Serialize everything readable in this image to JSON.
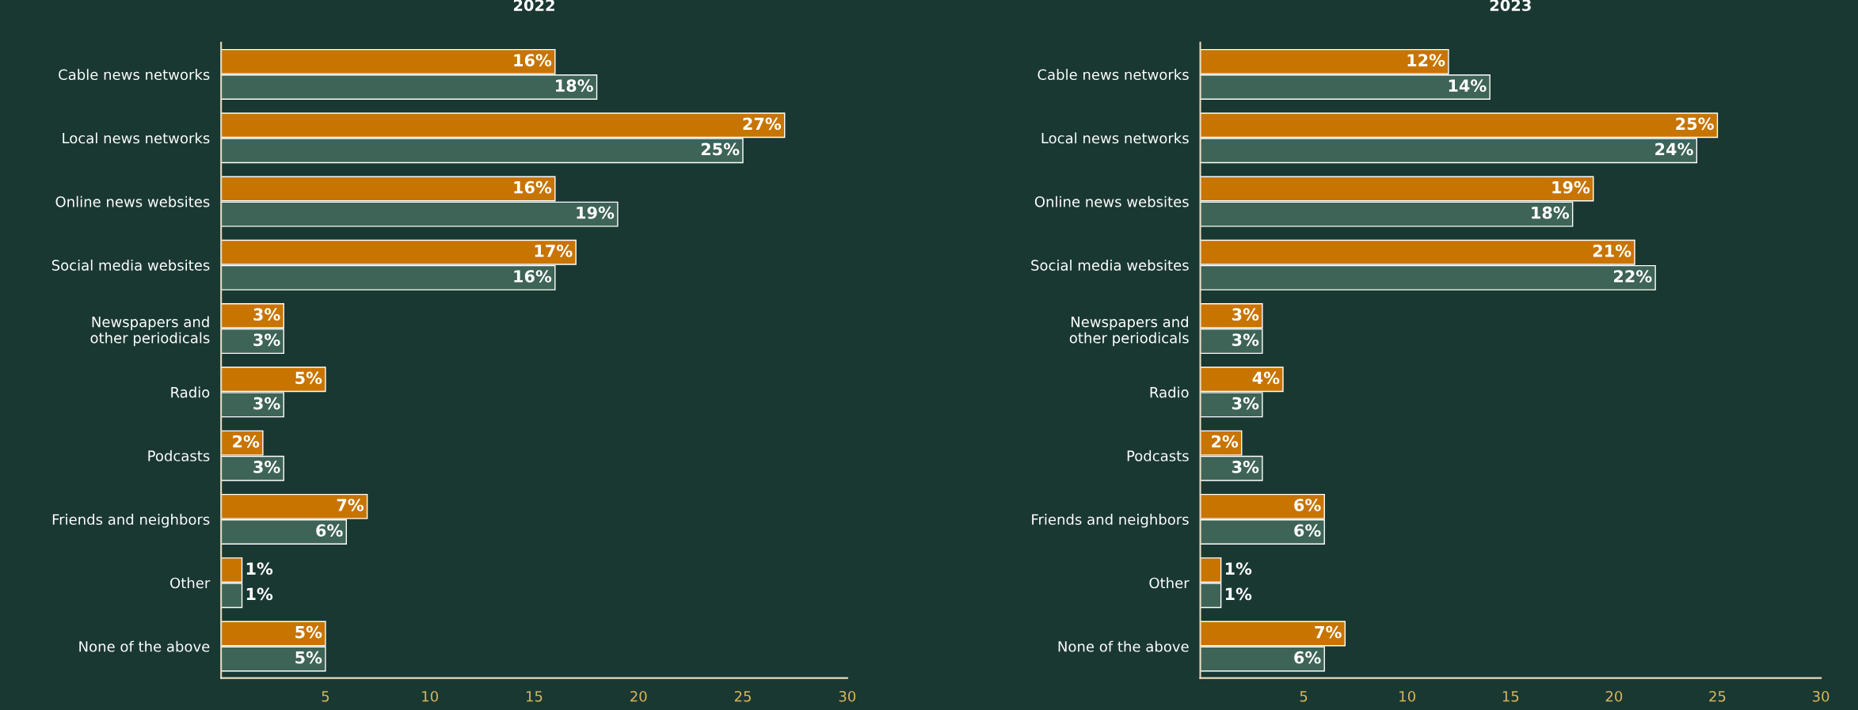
{
  "chart_data": [
    {
      "type": "bar",
      "orientation": "horizontal",
      "title": "2022",
      "categories": [
        "Cable news networks",
        "Local news networks",
        "Online news websites",
        "Social media websites",
        "Newspapers and\nother periodicals",
        "Radio",
        "Podcasts",
        "Friends and neighbors",
        "Other",
        "None of the above"
      ],
      "series": [
        {
          "color": "#c87400",
          "values": [
            16,
            27,
            16,
            17,
            3,
            5,
            2,
            7,
            1,
            5
          ],
          "value_labels": [
            "16%",
            "27%",
            "16%",
            "17%",
            "3%",
            "5%",
            "2%",
            "7%",
            "1%",
            "5%"
          ]
        },
        {
          "color": "#3e6357",
          "values": [
            18,
            25,
            19,
            16,
            3,
            3,
            3,
            6,
            1,
            5
          ],
          "value_labels": [
            "18%",
            "25%",
            "19%",
            "16%",
            "3%",
            "3%",
            "3%",
            "6%",
            "1%",
            "5%"
          ]
        }
      ],
      "xlim": [
        0,
        30
      ],
      "xticks": [
        5,
        10,
        15,
        20,
        25,
        30
      ],
      "grid": false,
      "legend": false
    },
    {
      "type": "bar",
      "orientation": "horizontal",
      "title": "2023",
      "categories": [
        "Cable news networks",
        "Local news networks",
        "Online news websites",
        "Social media websites",
        "Newspapers and\nother periodicals",
        "Radio",
        "Podcasts",
        "Friends and neighbors",
        "Other",
        "None of the above"
      ],
      "series": [
        {
          "color": "#c87400",
          "values": [
            12,
            25,
            19,
            21,
            3,
            4,
            2,
            6,
            1,
            7
          ],
          "value_labels": [
            "12%",
            "25%",
            "19%",
            "21%",
            "3%",
            "4%",
            "2%",
            "6%",
            "1%",
            "7%"
          ]
        },
        {
          "color": "#3e6357",
          "values": [
            14,
            24,
            18,
            22,
            3,
            3,
            3,
            6,
            1,
            6
          ],
          "value_labels": [
            "14%",
            "24%",
            "18%",
            "22%",
            "3%",
            "3%",
            "3%",
            "6%",
            "1%",
            "6%"
          ]
        }
      ],
      "xlim": [
        0,
        30
      ],
      "xticks": [
        5,
        10,
        15,
        20,
        25,
        30
      ],
      "grid": false,
      "legend": false
    }
  ]
}
